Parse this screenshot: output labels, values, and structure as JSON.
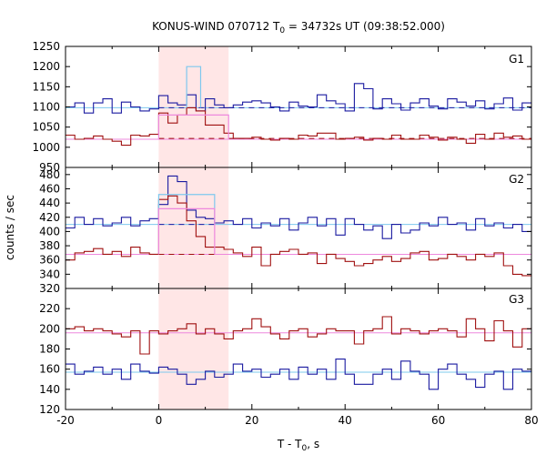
{
  "chart_data": {
    "type": "line",
    "title": {
      "prefix": "KONUS-WIND 070712 T",
      "sub": "0",
      "suffix": " = 34732s UT (09:38:52.000)"
    },
    "xlabel": {
      "prefix": "T - T",
      "sub": "0",
      "suffix": ", s"
    },
    "ylabel": "counts / sec",
    "xlim": [
      -20,
      80
    ],
    "xticks": [
      -20,
      0,
      20,
      40,
      60,
      80
    ],
    "highlight_interval": [
      0,
      15
    ],
    "highlight_color": "#ffe6e6",
    "bin_edges": [
      -20,
      -18,
      -16,
      -14,
      -12,
      -10,
      -8,
      -6,
      -4,
      -2,
      0,
      2,
      4,
      6,
      8,
      10,
      12,
      14,
      16,
      18,
      20,
      22,
      24,
      26,
      28,
      30,
      32,
      34,
      36,
      38,
      40,
      42,
      44,
      46,
      48,
      50,
      52,
      54,
      56,
      58,
      60,
      62,
      64,
      66,
      68,
      70,
      72,
      74,
      76,
      78,
      80
    ],
    "colors": {
      "blue": "#1a1aa0",
      "red": "#a01010",
      "cyan": "#7ec8ee",
      "pink": "#ee88dd"
    },
    "panels": [
      {
        "name": "G1",
        "ylim": [
          950,
          1250
        ],
        "yticks": [
          950,
          1000,
          1050,
          1100,
          1150,
          1200,
          1250
        ],
        "series": [
          {
            "color": "blue",
            "values": [
              1100,
              1110,
              1085,
              1110,
              1120,
              1085,
              1112,
              1100,
              1090,
              1095,
              1128,
              1110,
              1105,
              1130,
              1090,
              1120,
              1105,
              1098,
              1105,
              1112,
              1115,
              1110,
              1100,
              1090,
              1112,
              1102,
              1100,
              1130,
              1115,
              1108,
              1090,
              1158,
              1145,
              1095,
              1120,
              1108,
              1092,
              1110,
              1120,
              1102,
              1095,
              1120,
              1112,
              1102,
              1115,
              1095,
              1108,
              1122,
              1092,
              1110
            ]
          },
          {
            "color": "red",
            "values": [
              1030,
              1020,
              1022,
              1028,
              1020,
              1015,
              1005,
              1030,
              1028,
              1032,
              1085,
              1060,
              1080,
              1098,
              1090,
              1055,
              1055,
              1035,
              1022,
              1022,
              1025,
              1020,
              1018,
              1022,
              1020,
              1030,
              1028,
              1035,
              1035,
              1020,
              1022,
              1025,
              1018,
              1022,
              1020,
              1030,
              1020,
              1020,
              1030,
              1025,
              1018,
              1025,
              1020,
              1010,
              1032,
              1020,
              1035,
              1025,
              1028,
              1020
            ]
          }
        ],
        "fit_lines": [
          {
            "color": "cyan",
            "level": 1098,
            "dash_from": null
          },
          {
            "color": "pink",
            "level": 1020,
            "dash_from": null
          },
          {
            "color": "blue",
            "level": 1098,
            "dashed": true,
            "from": 0,
            "to": 80
          },
          {
            "color": "red",
            "level": 1022,
            "dashed": true,
            "from": 0,
            "to": 80
          }
        ],
        "overlays": [
          {
            "color": "cyan",
            "x0": 6,
            "x1": 9,
            "value": 1200
          },
          {
            "color": "pink",
            "x0": 0,
            "x1": 15,
            "value": 1080
          }
        ]
      },
      {
        "name": "G2",
        "ylim": [
          320,
          490
        ],
        "yticks": [
          320,
          340,
          360,
          380,
          400,
          420,
          440,
          460,
          480
        ],
        "series": [
          {
            "color": "blue",
            "values": [
              405,
              420,
              410,
              418,
              408,
              412,
              420,
              408,
              415,
              418,
              438,
              478,
              470,
              430,
              420,
              418,
              412,
              415,
              410,
              418,
              405,
              412,
              408,
              418,
              402,
              412,
              420,
              408,
              418,
              395,
              418,
              410,
              402,
              408,
              390,
              410,
              398,
              402,
              412,
              408,
              420,
              410,
              412,
              402,
              418,
              408,
              412,
              405,
              410,
              400
            ]
          },
          {
            "color": "red",
            "values": [
              360,
              370,
              372,
              376,
              368,
              372,
              365,
              378,
              370,
              368,
              445,
              450,
              440,
              415,
              393,
              378,
              378,
              375,
              370,
              365,
              378,
              352,
              368,
              372,
              375,
              368,
              370,
              355,
              368,
              362,
              358,
              352,
              355,
              360,
              365,
              358,
              362,
              370,
              372,
              360,
              362,
              368,
              365,
              360,
              368,
              365,
              370,
              352,
              340,
              338
            ]
          }
        ],
        "fit_lines": [
          {
            "color": "cyan",
            "level": 410
          },
          {
            "color": "pink",
            "level": 368
          },
          {
            "color": "blue",
            "level": 410,
            "dashed": true,
            "from": 0,
            "to": 12
          },
          {
            "color": "red",
            "level": 368,
            "dashed": true,
            "from": 0,
            "to": 12
          }
        ],
        "overlays": [
          {
            "color": "cyan",
            "x0": 0,
            "x1": 12,
            "value": 452
          },
          {
            "color": "pink",
            "x0": 0,
            "x1": 12,
            "value": 432
          }
        ]
      },
      {
        "name": "G3",
        "ylim": [
          120,
          240
        ],
        "yticks": [
          120,
          140,
          160,
          180,
          200,
          220
        ],
        "series": [
          {
            "color": "blue",
            "values": [
              165,
              155,
              158,
              162,
              155,
              160,
              150,
              165,
              158,
              156,
              162,
              160,
              155,
              145,
              150,
              158,
              152,
              155,
              165,
              158,
              160,
              152,
              155,
              160,
              150,
              162,
              155,
              160,
              150,
              170,
              155,
              145,
              145,
              155,
              160,
              150,
              168,
              158,
              155,
              140,
              160,
              165,
              155,
              150,
              142,
              155,
              158,
              140,
              160,
              158
            ]
          },
          {
            "color": "red",
            "values": [
              200,
              202,
              198,
              200,
              198,
              195,
              192,
              198,
              175,
              198,
              195,
              198,
              200,
              205,
              195,
              200,
              195,
              190,
              198,
              200,
              210,
              202,
              195,
              190,
              198,
              200,
              192,
              195,
              200,
              198,
              198,
              185,
              198,
              200,
              212,
              195,
              200,
              198,
              195,
              198,
              200,
              198,
              192,
              210,
              200,
              188,
              208,
              198,
              182,
              200
            ]
          }
        ],
        "fit_lines": [
          {
            "color": "cyan",
            "level": 157
          },
          {
            "color": "pink",
            "level": 196
          }
        ],
        "overlays": []
      }
    ]
  }
}
